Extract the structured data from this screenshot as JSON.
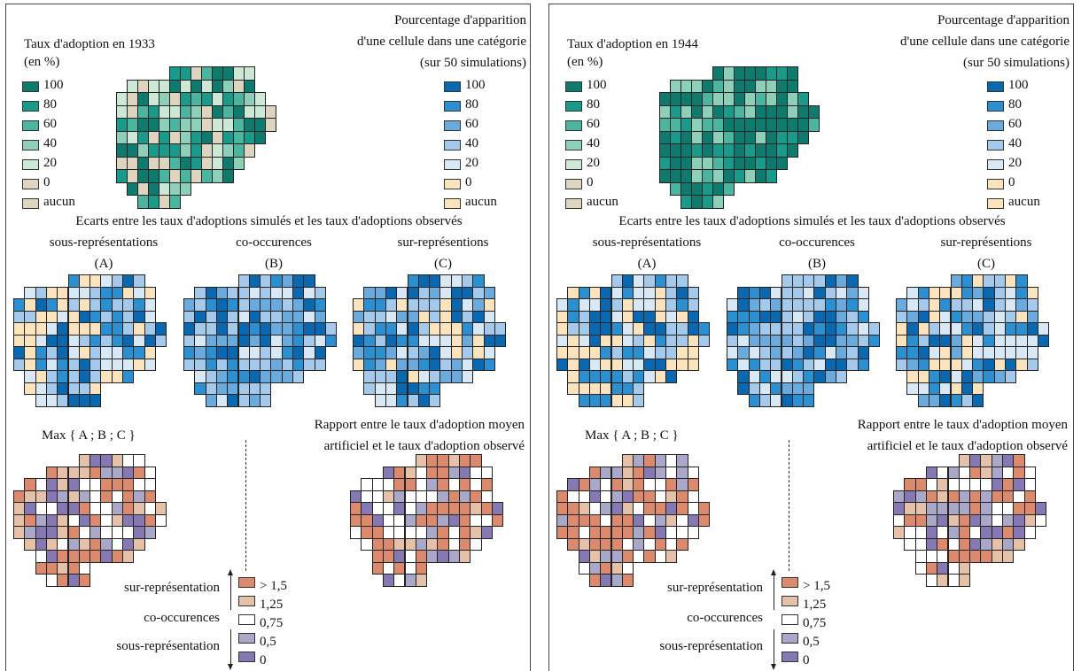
{
  "panels": [
    {
      "adoption_title": "Taux d'adoption en 1933",
      "adoption_unit": "(en %)",
      "pct_title_1": "Pourcentage d'apparition",
      "pct_title_2": "d'une cellule dans une catégorie",
      "pct_title_3": "(sur 50 simulations)",
      "gaps_title": "Ecarts entre les taux d'adoptions simulés et les taux d'adoptions observés",
      "max_label": "Max { A ; B ; C }",
      "ratio_title_1": "Rapport entre le taux d'adoption moyen",
      "ratio_title_2": "artificiel et le taux d'adoption observé",
      "seed": 7,
      "adopt_bias": 0
    },
    {
      "adoption_title": "Taux d'adoption en 1944",
      "adoption_unit": "(en %)",
      "pct_title_1": "Pourcentage d'apparition",
      "pct_title_2": "d'une cellule dans une catégorie",
      "pct_title_3": "(sur 50 simulations)",
      "gaps_title": "Ecarts entre les taux d'adoptions simulés et les taux d'adoptions observés",
      "max_label": "Max { A ; B ; C }",
      "ratio_title_1": "Rapport entre le taux d'adoption moyen",
      "ratio_title_2": "artificiel et le taux d'adoption observé",
      "seed": 13,
      "adopt_bias": 2
    }
  ],
  "sub_maps": [
    {
      "name": "sous-représentations",
      "letter": "(A)"
    },
    {
      "name": "co-occurences",
      "letter": "(B)"
    },
    {
      "name": "sur-représentions",
      "letter": "(C)"
    }
  ],
  "legend_adoption": {
    "labels": [
      "100",
      "80",
      "60",
      "40",
      "20",
      "0",
      "aucun"
    ],
    "colors": [
      "#0f7a6e",
      "#1a9a8a",
      "#4cb5a0",
      "#8dcfb8",
      "#cde8d6",
      "#ddd5bf"
    ]
  },
  "legend_percent": {
    "labels": [
      "100",
      "80",
      "60",
      "40",
      "20",
      "0",
      "aucun"
    ],
    "colors": [
      "#0a68b0",
      "#2c8fd0",
      "#6aaadd",
      "#a5c9ea",
      "#d8e8f5",
      "#fbe3bd"
    ]
  },
  "legend_ratio": {
    "labels": [
      "> 1,5",
      "1,25",
      "0,75",
      "0,5",
      "0"
    ],
    "colors": [
      "#dc8a6e",
      "#e6c1aa",
      "#ffffff",
      "#a9a8c8",
      "#8678b2"
    ]
  },
  "ratio_scale": {
    "over": "sur-représentation",
    "co": "co-occurences",
    "under": "sous-représentation"
  },
  "border_color": "#222222"
}
